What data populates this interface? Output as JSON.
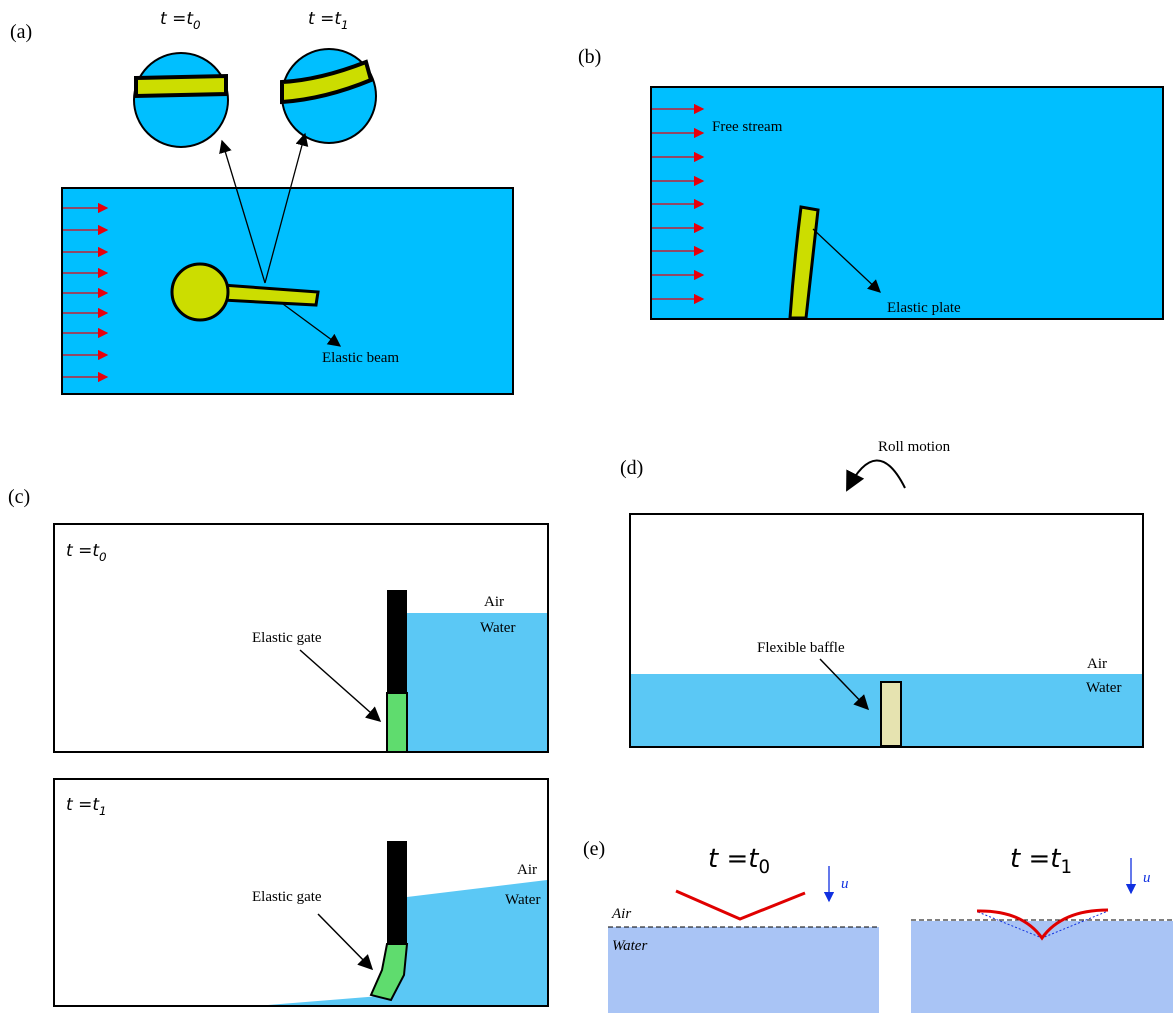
{
  "panels": {
    "a": {
      "label": "(a)",
      "time_labels": [
        {
          "text": "t =t",
          "sub": "0"
        },
        {
          "text": "t =t",
          "sub": "1"
        }
      ],
      "annotation": "Elastic beam"
    },
    "b": {
      "label": "(b)",
      "stream": "Free stream",
      "annotation": "Elastic plate"
    },
    "c": {
      "label": "(c)",
      "frames": [
        {
          "time": {
            "text": "t =t",
            "sub": "0"
          },
          "air": "Air",
          "water": "Water",
          "annotation": "Elastic gate"
        },
        {
          "time": {
            "text": "t =t",
            "sub": "1"
          },
          "air": "Air",
          "water": "Water",
          "annotation": "Elastic gate"
        }
      ]
    },
    "d": {
      "label": "(d)",
      "motion": "Roll motion",
      "annotation": "Flexible baffle",
      "air": "Air",
      "water": "Water"
    },
    "e": {
      "label": "(e)",
      "frames": [
        {
          "time": {
            "text": "t =t",
            "sub": "0"
          },
          "velocity": "u",
          "air": "Air",
          "water": "Water"
        },
        {
          "time": {
            "text": "t =t",
            "sub": "1"
          },
          "velocity": "u"
        }
      ]
    }
  }
}
